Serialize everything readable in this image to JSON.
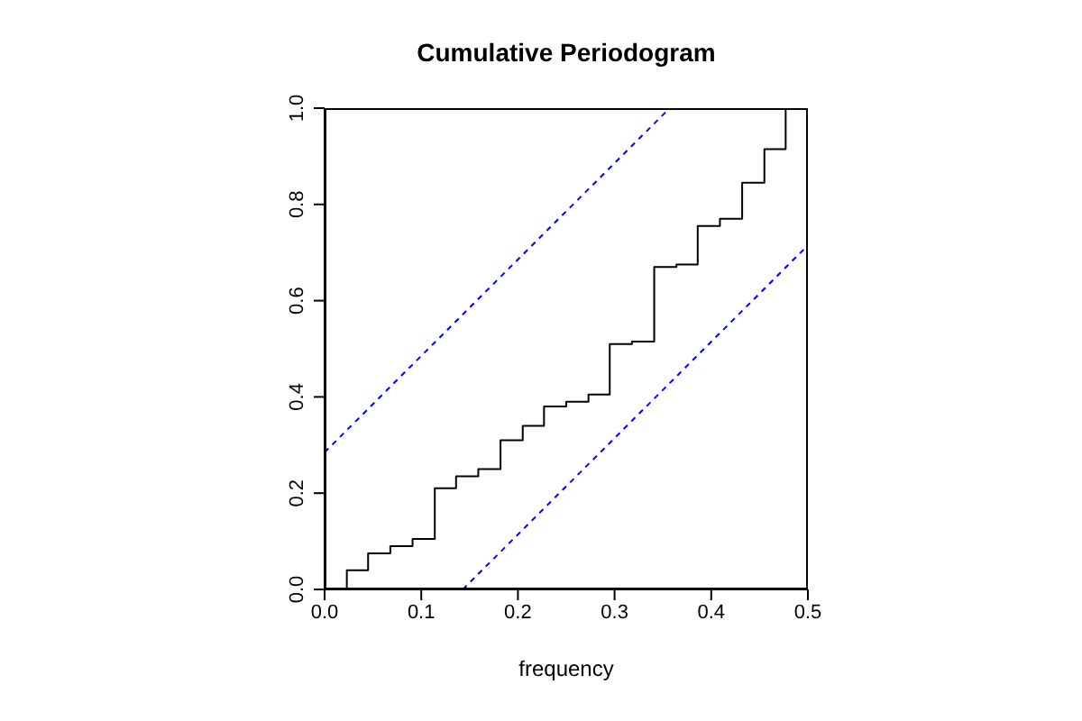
{
  "chart_data": {
    "type": "step",
    "title": "Cumulative Periodogram",
    "xlabel": "frequency",
    "xlim": [
      0,
      0.5
    ],
    "ylim": [
      0,
      1
    ],
    "xticks": [
      {
        "value": 0,
        "label": "0.0"
      },
      0.1,
      0.2,
      0.3,
      0.4,
      0.5
    ],
    "yticks": [
      {
        "value": 0,
        "label": "0.0"
      },
      0.2,
      0.4,
      0.6,
      0.8,
      {
        "value": 1,
        "label": "1.0"
      }
    ],
    "grid": false,
    "series": [
      {
        "color": "#000000",
        "x": [
          0,
          0.023,
          0.045,
          0.068,
          0.091,
          0.114,
          0.136,
          0.159,
          0.182,
          0.205,
          0.227,
          0.25,
          0.273,
          0.295,
          0.318,
          0.341,
          0.364,
          0.386,
          0.409,
          0.432,
          0.455,
          0.477,
          0.5
        ],
        "values": [
          0,
          0.04,
          0.075,
          0.09,
          0.105,
          0.21,
          0.235,
          0.25,
          0.31,
          0.34,
          0.38,
          0.39,
          0.405,
          0.51,
          0.515,
          0.67,
          0.675,
          0.755,
          0.77,
          0.845,
          0.915,
          1,
          1
        ]
      },
      {
        "type": "line",
        "line_style": "dashed",
        "color": "#0000ff",
        "x": [
          0,
          0.357
        ],
        "values": [
          0.285,
          1
        ]
      },
      {
        "type": "line",
        "line_style": "dashed",
        "color": "#0000ff",
        "x": [
          0.143,
          0.5
        ],
        "values": [
          0,
          0.715
        ]
      }
    ]
  }
}
